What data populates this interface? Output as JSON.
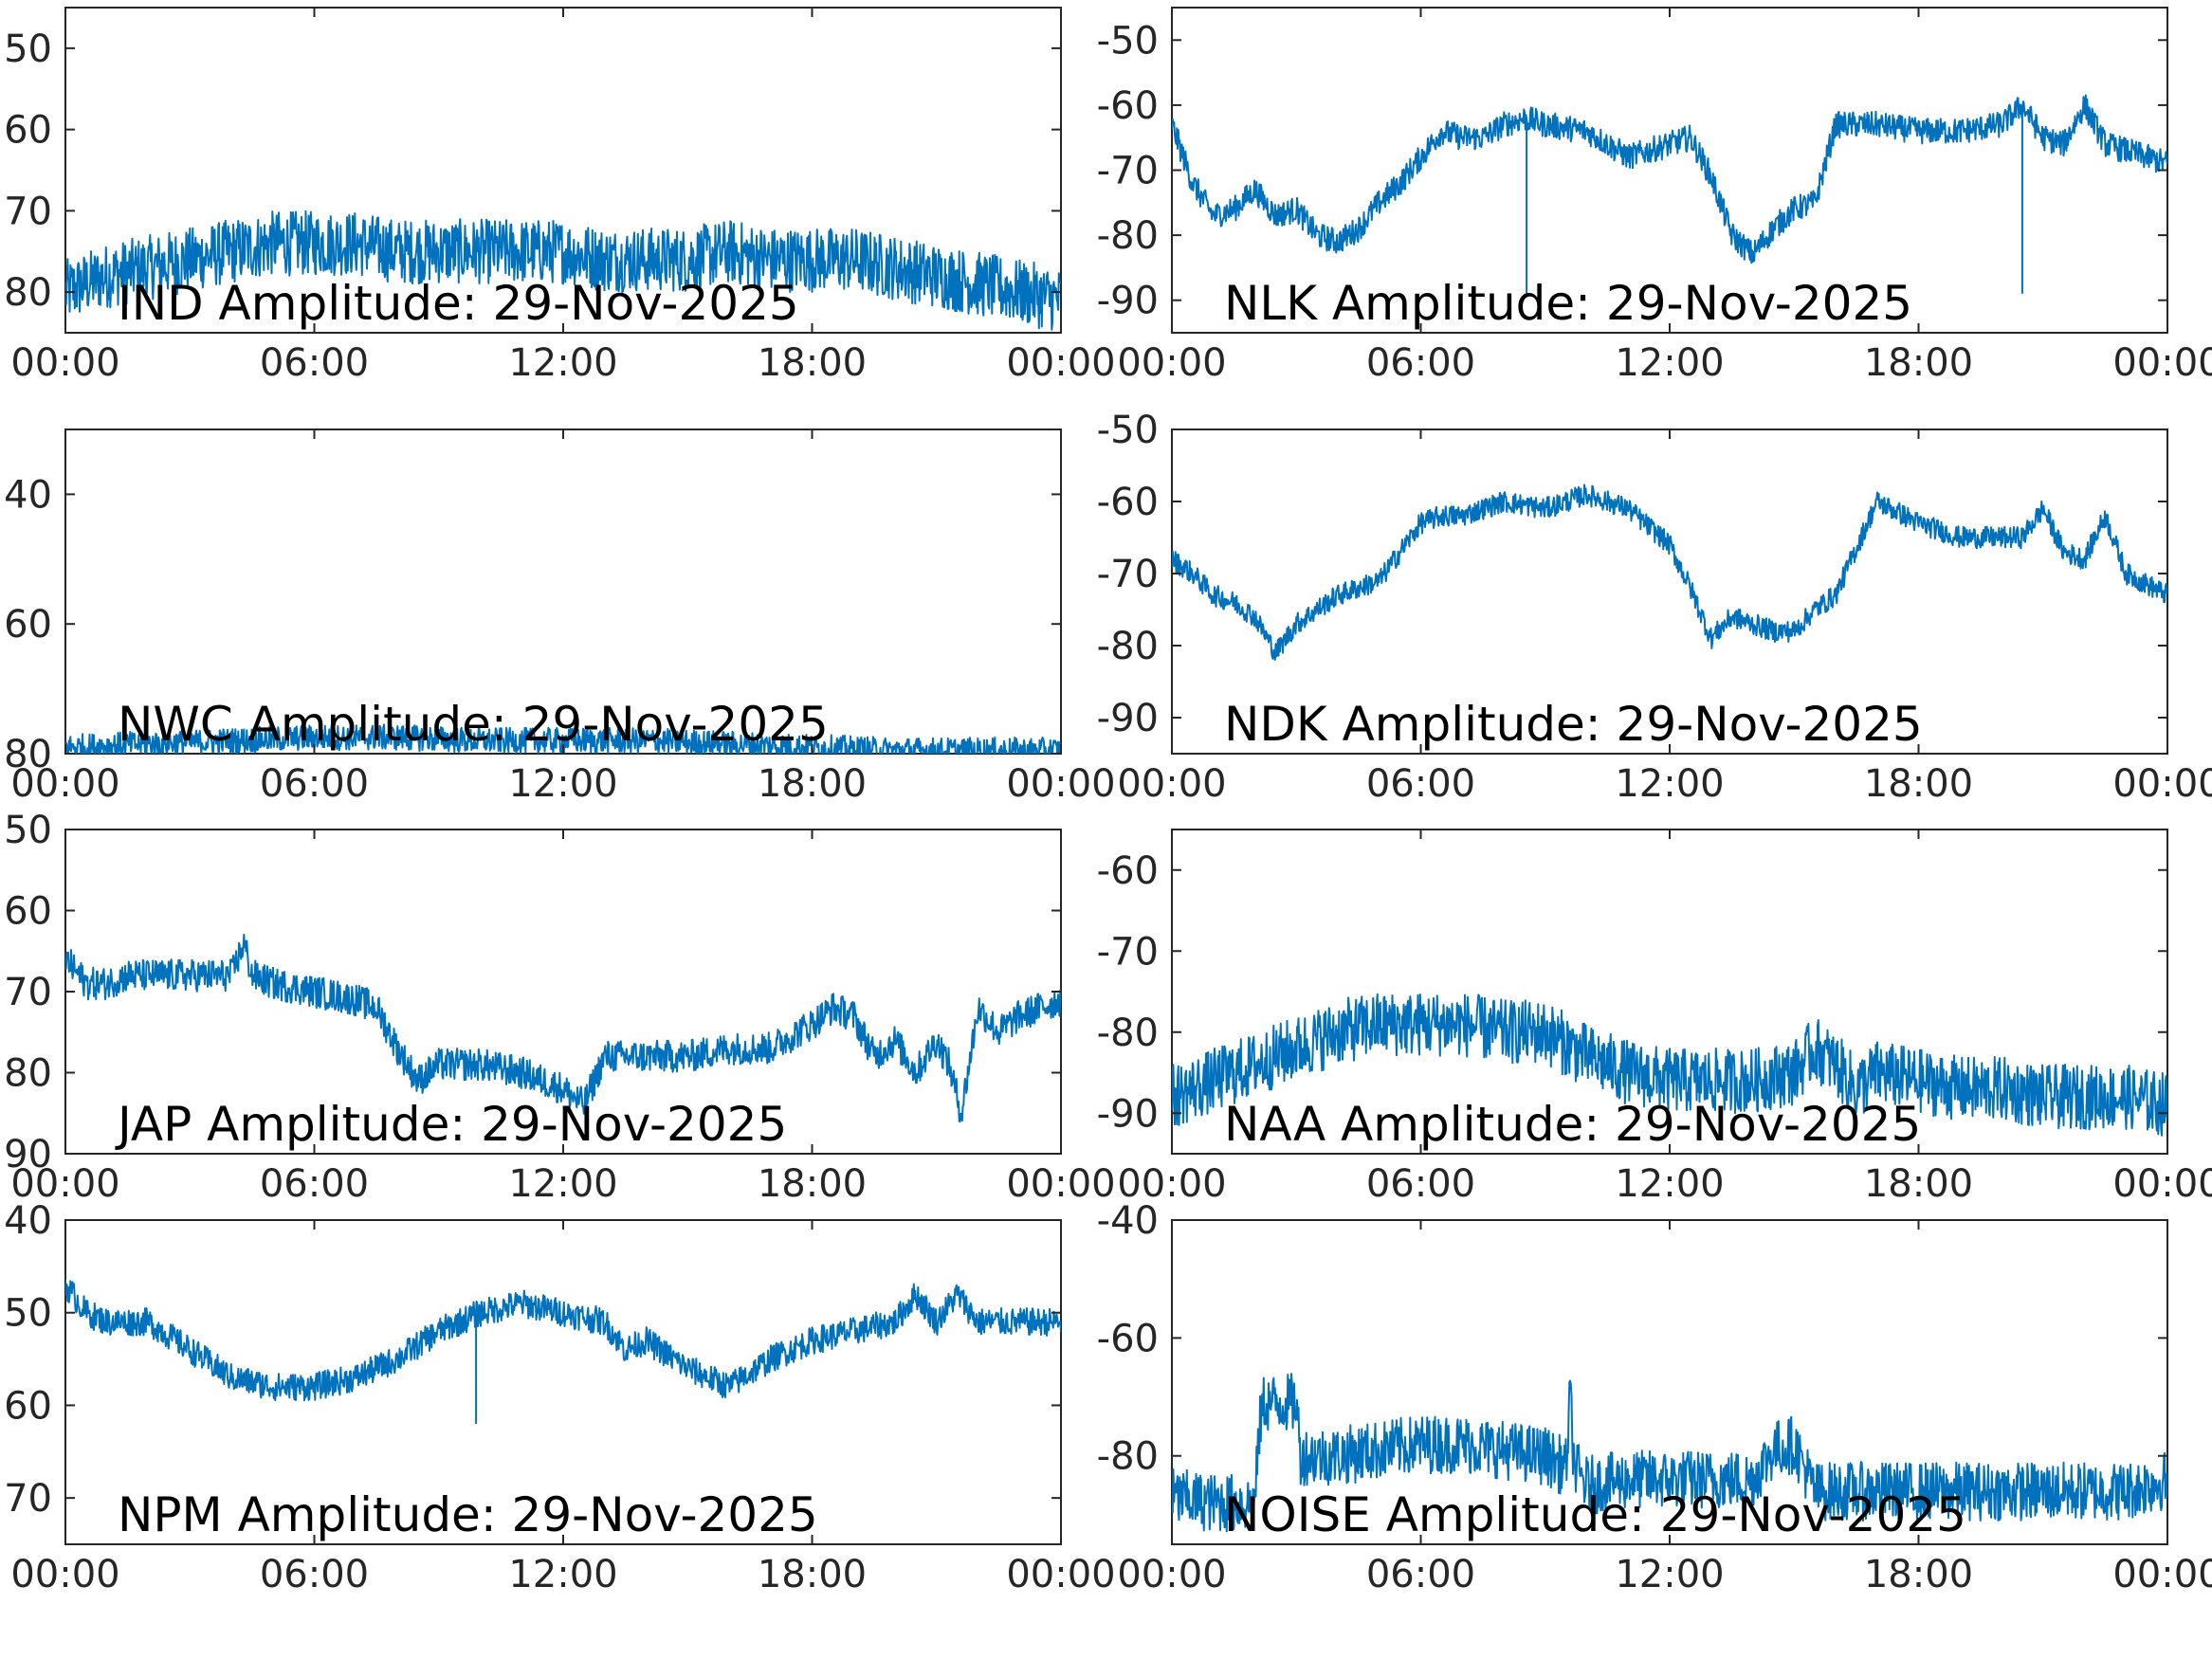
{
  "chart_data": [
    {
      "type": "line",
      "title": "IND Amplitude: 29-Nov-2025",
      "xlabel": "",
      "ylabel": "",
      "x_ticks": [
        "00:00",
        "06:00",
        "12:00",
        "18:00",
        "00:00"
      ],
      "y_ticks": [
        "50",
        "60",
        "70",
        "80"
      ],
      "ylim": [
        -85,
        -45
      ],
      "grid": false,
      "color": "#0072BD",
      "series": [
        {
          "x": [
            0,
            1,
            2,
            3,
            4,
            5,
            6,
            7,
            8,
            9,
            10,
            11,
            12,
            13,
            14,
            15,
            16,
            17,
            18,
            19,
            20,
            21,
            22,
            23,
            24
          ],
          "y": [
            -80,
            -78,
            -77,
            -76,
            -75,
            -74,
            -74,
            -74,
            -75,
            -75,
            -75,
            -75,
            -75,
            -76,
            -76,
            -76,
            -75,
            -76,
            -76,
            -76,
            -77,
            -78,
            -79,
            -80,
            -81
          ],
          "noise": 4
        }
      ]
    },
    {
      "type": "line",
      "title": "NLK Amplitude: 29-Nov-2025",
      "xlabel": "",
      "ylabel": "",
      "x_ticks": [
        "00:00",
        "06:00",
        "12:00",
        "18:00",
        "00:00"
      ],
      "y_ticks": [
        "-50",
        "-60",
        "-70",
        "-80",
        "-90"
      ],
      "ylim": [
        -95,
        -45
      ],
      "grid": false,
      "color": "#0072BD",
      "series": [
        {
          "x": [
            0,
            0.5,
            1,
            1.5,
            2,
            2.5,
            3,
            3.5,
            4,
            4.5,
            5,
            5.5,
            6,
            6.5,
            7,
            7.5,
            8,
            8.5,
            9,
            10,
            11,
            12,
            12.5,
            13,
            13.5,
            14,
            14.5,
            15,
            15.5,
            16,
            17,
            18,
            19,
            20,
            20.5,
            21,
            21.5,
            22,
            22.5,
            23,
            24
          ],
          "y": [
            -63,
            -72,
            -77,
            -76,
            -73,
            -77,
            -76,
            -80,
            -81,
            -79,
            -75,
            -72,
            -68,
            -64,
            -65,
            -65,
            -63,
            -62,
            -63,
            -64,
            -68,
            -66,
            -65,
            -71,
            -80,
            -83,
            -79,
            -76,
            -75,
            -63,
            -63,
            -64,
            -64,
            -63,
            -60,
            -65,
            -66,
            -60,
            -66,
            -67,
            -69
          ],
          "noise": 2,
          "spikes": [
            [
              8.55,
              -89
            ],
            [
              20.5,
              -89
            ]
          ]
        }
      ]
    },
    {
      "type": "line",
      "title": "NWC Amplitude: 29-Nov-2025",
      "xlabel": "",
      "ylabel": "",
      "x_ticks": [
        "00:00",
        "06:00",
        "12:00",
        "18:00",
        "00:00"
      ],
      "y_ticks": [
        "40",
        "60",
        "80"
      ],
      "ylim": [
        -80,
        -30
      ],
      "grid": false,
      "color": "#0072BD",
      "series": [
        {
          "x": [
            0,
            2,
            4,
            6,
            8,
            10,
            12,
            14,
            16,
            18,
            20,
            22,
            24
          ],
          "y": [
            -79,
            -78.5,
            -78,
            -77.5,
            -77.5,
            -78,
            -78,
            -78,
            -78.5,
            -79,
            -79.5,
            -79.5,
            -79.5
          ],
          "noise": 2
        }
      ]
    },
    {
      "type": "line",
      "title": "NDK Amplitude: 29-Nov-2025",
      "xlabel": "",
      "ylabel": "",
      "x_ticks": [
        "00:00",
        "06:00",
        "12:00",
        "18:00",
        "00:00"
      ],
      "y_ticks": [
        "-50",
        "-60",
        "-70",
        "-80",
        "-90"
      ],
      "ylim": [
        -95,
        -50
      ],
      "grid": false,
      "color": "#0072BD",
      "series": [
        {
          "x": [
            0,
            0.5,
            1,
            1.5,
            2,
            2.5,
            3,
            3.5,
            4,
            4.5,
            5,
            5.5,
            6,
            6.5,
            7,
            8,
            9,
            10,
            11,
            12,
            12.5,
            13,
            13.5,
            14,
            14.5,
            15,
            15.5,
            16,
            17,
            18,
            19,
            20,
            20.5,
            21,
            21.5,
            22,
            22.5,
            23,
            24
          ],
          "y": [
            -68,
            -70,
            -73,
            -74,
            -76,
            -81,
            -77,
            -75,
            -73,
            -72,
            -71,
            -67,
            -63,
            -62,
            -62,
            -60,
            -61,
            -59,
            -61,
            -66,
            -72,
            -79,
            -76,
            -77,
            -78,
            -78,
            -75,
            -73,
            -60,
            -63,
            -65,
            -65,
            -65,
            -61,
            -67,
            -68,
            -62,
            -70,
            -73
          ],
          "noise": 1.5
        }
      ]
    },
    {
      "type": "line",
      "title": "JAP Amplitude: 29-Nov-2025",
      "xlabel": "",
      "ylabel": "",
      "x_ticks": [
        "00:00",
        "06:00",
        "12:00",
        "18:00",
        "00:00"
      ],
      "y_ticks": [
        "50",
        "60",
        "70",
        "80",
        "90"
      ],
      "ylim": [
        -90,
        -50
      ],
      "grid": false,
      "color": "#0072BD",
      "series": [
        {
          "x": [
            0,
            0.5,
            1,
            1.5,
            2,
            3,
            4,
            4.3,
            4.5,
            5,
            6,
            7,
            7.5,
            8,
            8.5,
            9,
            10,
            11,
            12,
            12.5,
            13,
            14,
            15,
            16,
            17,
            18,
            18.5,
            19,
            19.5,
            20,
            20.5,
            21,
            21.3,
            21.6,
            22,
            22.5,
            23,
            24
          ],
          "y": [
            -66,
            -69,
            -69,
            -68,
            -68,
            -68,
            -68,
            -64,
            -68,
            -69,
            -70,
            -71,
            -72,
            -77,
            -81,
            -79,
            -79,
            -80,
            -82,
            -84,
            -78,
            -78,
            -78,
            -77,
            -77,
            -74,
            -72,
            -73,
            -78,
            -76,
            -80,
            -76,
            -79,
            -85,
            -72,
            -75,
            -73,
            -71
          ],
          "noise": 2
        }
      ]
    },
    {
      "type": "line",
      "title": "NAA Amplitude: 29-Nov-2025",
      "xlabel": "",
      "ylabel": "",
      "x_ticks": [
        "00:00",
        "06:00",
        "12:00",
        "18:00",
        "00:00"
      ],
      "y_ticks": [
        "-60",
        "-70",
        "-80",
        "-90"
      ],
      "ylim": [
        -95,
        -55
      ],
      "grid": false,
      "color": "#0072BD",
      "series": [
        {
          "x": [
            0,
            1,
            2,
            3,
            4,
            5,
            6,
            7,
            8,
            9,
            10,
            11,
            12,
            13,
            14,
            15,
            15.5,
            16,
            16.5,
            17,
            18,
            19,
            20,
            21,
            22,
            23,
            24
          ],
          "y": [
            -88,
            -86,
            -84,
            -82,
            -80,
            -79,
            -79,
            -79,
            -80,
            -80,
            -83,
            -85,
            -86,
            -86,
            -86,
            -85,
            -82,
            -84,
            -87,
            -85,
            -86,
            -87,
            -87,
            -88,
            -88,
            -88,
            -89
          ],
          "noise": 4
        }
      ]
    },
    {
      "type": "line",
      "title": "NPM Amplitude: 29-Nov-2025",
      "xlabel": "",
      "ylabel": "",
      "x_ticks": [
        "00:00",
        "06:00",
        "12:00",
        "18:00",
        "00:00"
      ],
      "y_ticks": [
        "40",
        "50",
        "60",
        "70"
      ],
      "ylim": [
        -75,
        -40
      ],
      "grid": false,
      "color": "#0072BD",
      "series": [
        {
          "x": [
            0,
            0.5,
            1,
            2,
            3,
            4,
            5,
            6,
            7,
            8,
            9,
            10,
            11,
            12,
            13,
            13.5,
            14,
            15,
            16,
            17,
            18,
            19,
            20,
            20.5,
            21,
            21.5,
            22,
            23,
            24
          ],
          "y": [
            -47,
            -50,
            -51,
            -51,
            -54,
            -57,
            -58,
            -58,
            -57,
            -55,
            -52,
            -50,
            -49,
            -50,
            -51,
            -54,
            -53,
            -56,
            -58,
            -55,
            -53,
            -52,
            -51,
            -48,
            -51,
            -48,
            -51,
            -51,
            -51
          ],
          "noise": 1.5,
          "spikes": [
            [
              9.9,
              -62
            ]
          ]
        }
      ]
    },
    {
      "type": "line",
      "title": "NOISE Amplitude: 29-Nov-2025",
      "xlabel": "",
      "ylabel": "",
      "x_ticks": [
        "00:00",
        "06:00",
        "12:00",
        "18:00",
        "00:00"
      ],
      "y_ticks": [
        "-40",
        "-60",
        "-80"
      ],
      "ylim": [
        -95,
        -40
      ],
      "grid": false,
      "color": "#0072BD",
      "series": [
        {
          "x": [
            0,
            1,
            2,
            2.1,
            2.2,
            3,
            3.1,
            4,
            5,
            6,
            7,
            8,
            9,
            9.5,
            9.6,
            9.7,
            10,
            11,
            12,
            13,
            14,
            14.5,
            15,
            15.5,
            16,
            17,
            18,
            19,
            20,
            21,
            22,
            23,
            24
          ],
          "y": [
            -87,
            -88,
            -88,
            -76,
            -71,
            -71,
            -80,
            -80,
            -79,
            -78,
            -78,
            -79,
            -80,
            -82,
            -70,
            -82,
            -85,
            -84,
            -84,
            -84,
            -84,
            -79,
            -78,
            -86,
            -86,
            -86,
            -86,
            -86,
            -86,
            -86,
            -86,
            -86,
            -84
          ],
          "noise": 5
        }
      ]
    }
  ]
}
